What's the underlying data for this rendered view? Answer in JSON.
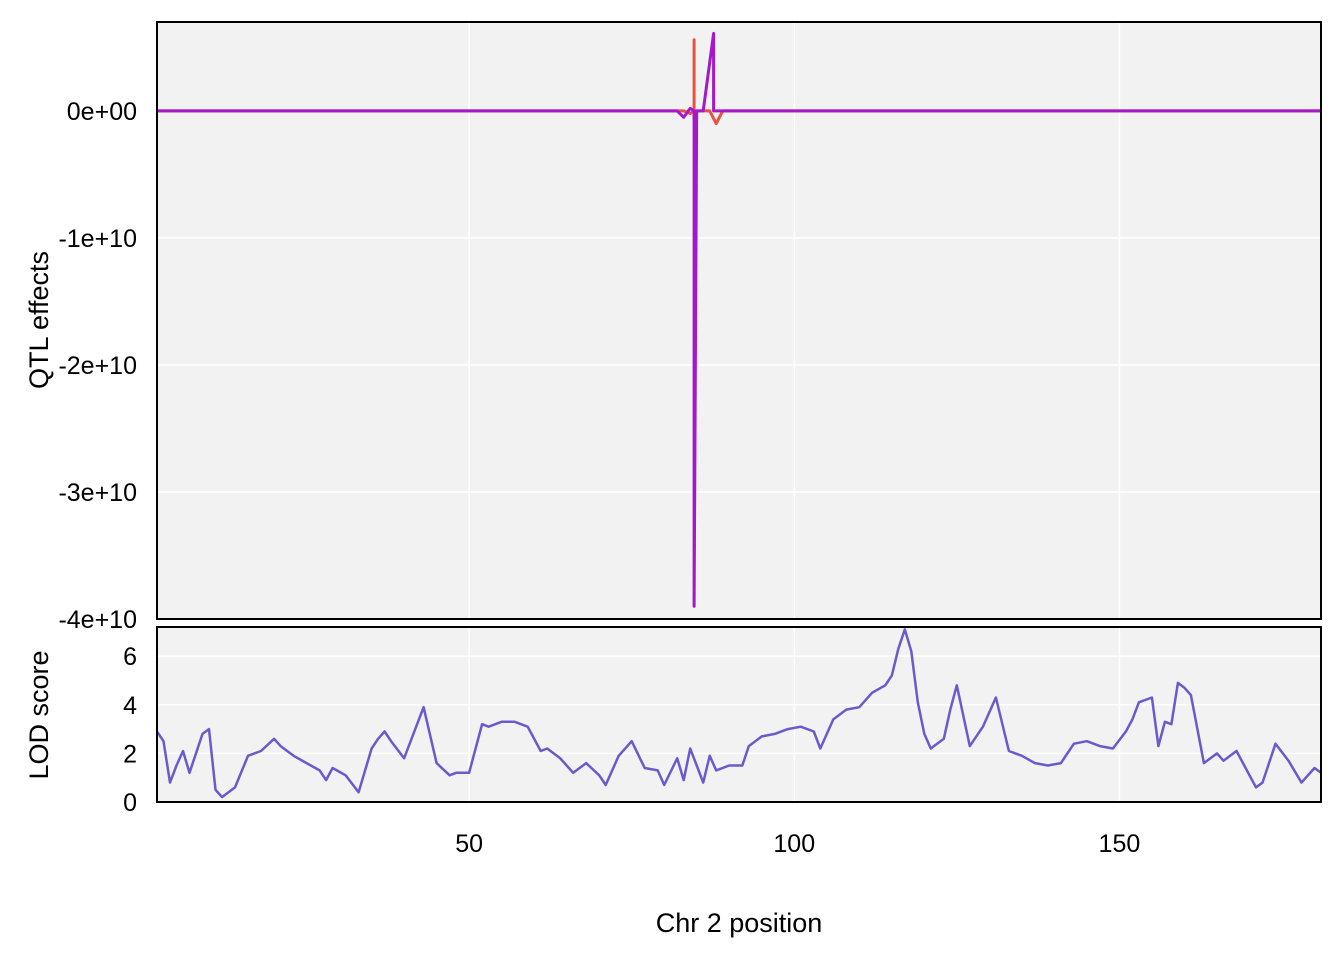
{
  "chart_data": [
    {
      "type": "line",
      "ylabel": "QTL effects",
      "xlim": [
        2,
        181
      ],
      "ylim": [
        -40000000000,
        7000000000
      ],
      "grid": true,
      "y_ticks": [
        {
          "value": 0,
          "label": "0e+00"
        },
        {
          "value": -10000000000,
          "label": "-1e+10"
        },
        {
          "value": -20000000000,
          "label": "-2e+10"
        },
        {
          "value": -30000000000,
          "label": "-3e+10"
        },
        {
          "value": -40000000000,
          "label": "-4e+10"
        }
      ],
      "x_gridlines": [
        50,
        100,
        150
      ],
      "series": [
        {
          "color": "#e8533f",
          "x": [
            2,
            79,
            80,
            81,
            82,
            83,
            84,
            84.6,
            84.6,
            84.6,
            85,
            86,
            87,
            88,
            89,
            90,
            91,
            92,
            93,
            181
          ],
          "y": [
            0,
            0,
            0,
            0,
            0,
            0,
            -200000000,
            0,
            5600000000,
            -700000000,
            0,
            0,
            0,
            -1000000000,
            0,
            0,
            0,
            0,
            0,
            0
          ]
        },
        {
          "color": "#a319c9",
          "x": [
            2,
            80,
            81,
            82,
            83,
            84,
            84.6,
            84.6,
            85,
            86,
            87.6,
            87.6,
            88,
            89,
            90,
            91,
            92,
            93,
            181
          ],
          "y": [
            0,
            0,
            0,
            0,
            -500000000,
            200000000,
            0,
            -39000000000,
            0,
            0,
            6100000000,
            0,
            0,
            0,
            0,
            0,
            0,
            0,
            0
          ]
        }
      ]
    },
    {
      "type": "line",
      "ylabel": "LOD score",
      "xlabel": "Chr 2 position",
      "xlim": [
        2,
        181
      ],
      "ylim": [
        0,
        7.2
      ],
      "grid": true,
      "y_ticks": [
        0,
        2,
        4,
        6
      ],
      "x_ticks": [
        50,
        100,
        150
      ],
      "series": [
        {
          "color": "#6a5acd",
          "x": [
            2,
            3,
            4,
            5,
            6,
            7,
            9,
            10,
            11,
            12,
            13,
            14,
            16,
            18,
            20,
            21,
            23,
            25,
            27,
            28,
            29,
            31,
            33,
            35,
            36,
            37,
            38,
            40,
            42,
            43,
            45,
            47,
            48,
            50,
            52,
            53,
            55,
            57,
            59,
            61,
            62,
            64,
            66,
            68,
            70,
            71,
            73,
            75,
            77,
            79,
            80,
            82,
            83,
            84,
            85,
            86,
            87,
            88,
            90,
            92,
            93,
            95,
            97,
            99,
            101,
            103,
            104,
            106,
            108,
            110,
            112,
            114,
            115,
            116,
            117,
            118,
            119,
            120,
            121,
            123,
            124,
            125,
            127,
            129,
            131,
            133,
            135,
            137,
            139,
            141,
            143,
            145,
            147,
            149,
            151,
            152,
            153,
            155,
            156,
            157,
            158,
            159,
            160,
            161,
            163,
            165,
            166,
            168,
            170,
            171,
            172,
            174,
            176,
            178,
            180,
            181
          ],
          "y": [
            2.9,
            2.5,
            0.8,
            1.5,
            2.1,
            1.2,
            2.8,
            3.0,
            0.5,
            0.2,
            0.4,
            0.6,
            1.9,
            2.1,
            2.6,
            2.3,
            1.9,
            1.6,
            1.3,
            0.9,
            1.4,
            1.1,
            0.4,
            2.2,
            2.6,
            2.9,
            2.5,
            1.8,
            3.2,
            3.9,
            1.6,
            1.1,
            1.2,
            1.2,
            3.2,
            3.1,
            3.3,
            3.3,
            3.1,
            2.1,
            2.2,
            1.8,
            1.2,
            1.6,
            1.1,
            0.7,
            1.9,
            2.5,
            1.4,
            1.3,
            0.7,
            1.8,
            0.9,
            2.2,
            1.5,
            0.8,
            1.9,
            1.3,
            1.5,
            1.5,
            2.3,
            2.7,
            2.8,
            3.0,
            3.1,
            2.9,
            2.2,
            3.4,
            3.8,
            3.9,
            4.5,
            4.8,
            5.2,
            6.3,
            7.1,
            6.2,
            4.1,
            2.8,
            2.2,
            2.6,
            3.8,
            4.8,
            2.3,
            3.1,
            4.3,
            2.1,
            1.9,
            1.6,
            1.5,
            1.6,
            2.4,
            2.5,
            2.3,
            2.2,
            2.9,
            3.4,
            4.1,
            4.3,
            2.3,
            3.3,
            3.2,
            4.9,
            4.7,
            4.4,
            1.6,
            2.0,
            1.7,
            2.1,
            1.1,
            0.6,
            0.8,
            2.4,
            1.7,
            0.8,
            1.4,
            1.2
          ]
        }
      ]
    }
  ]
}
